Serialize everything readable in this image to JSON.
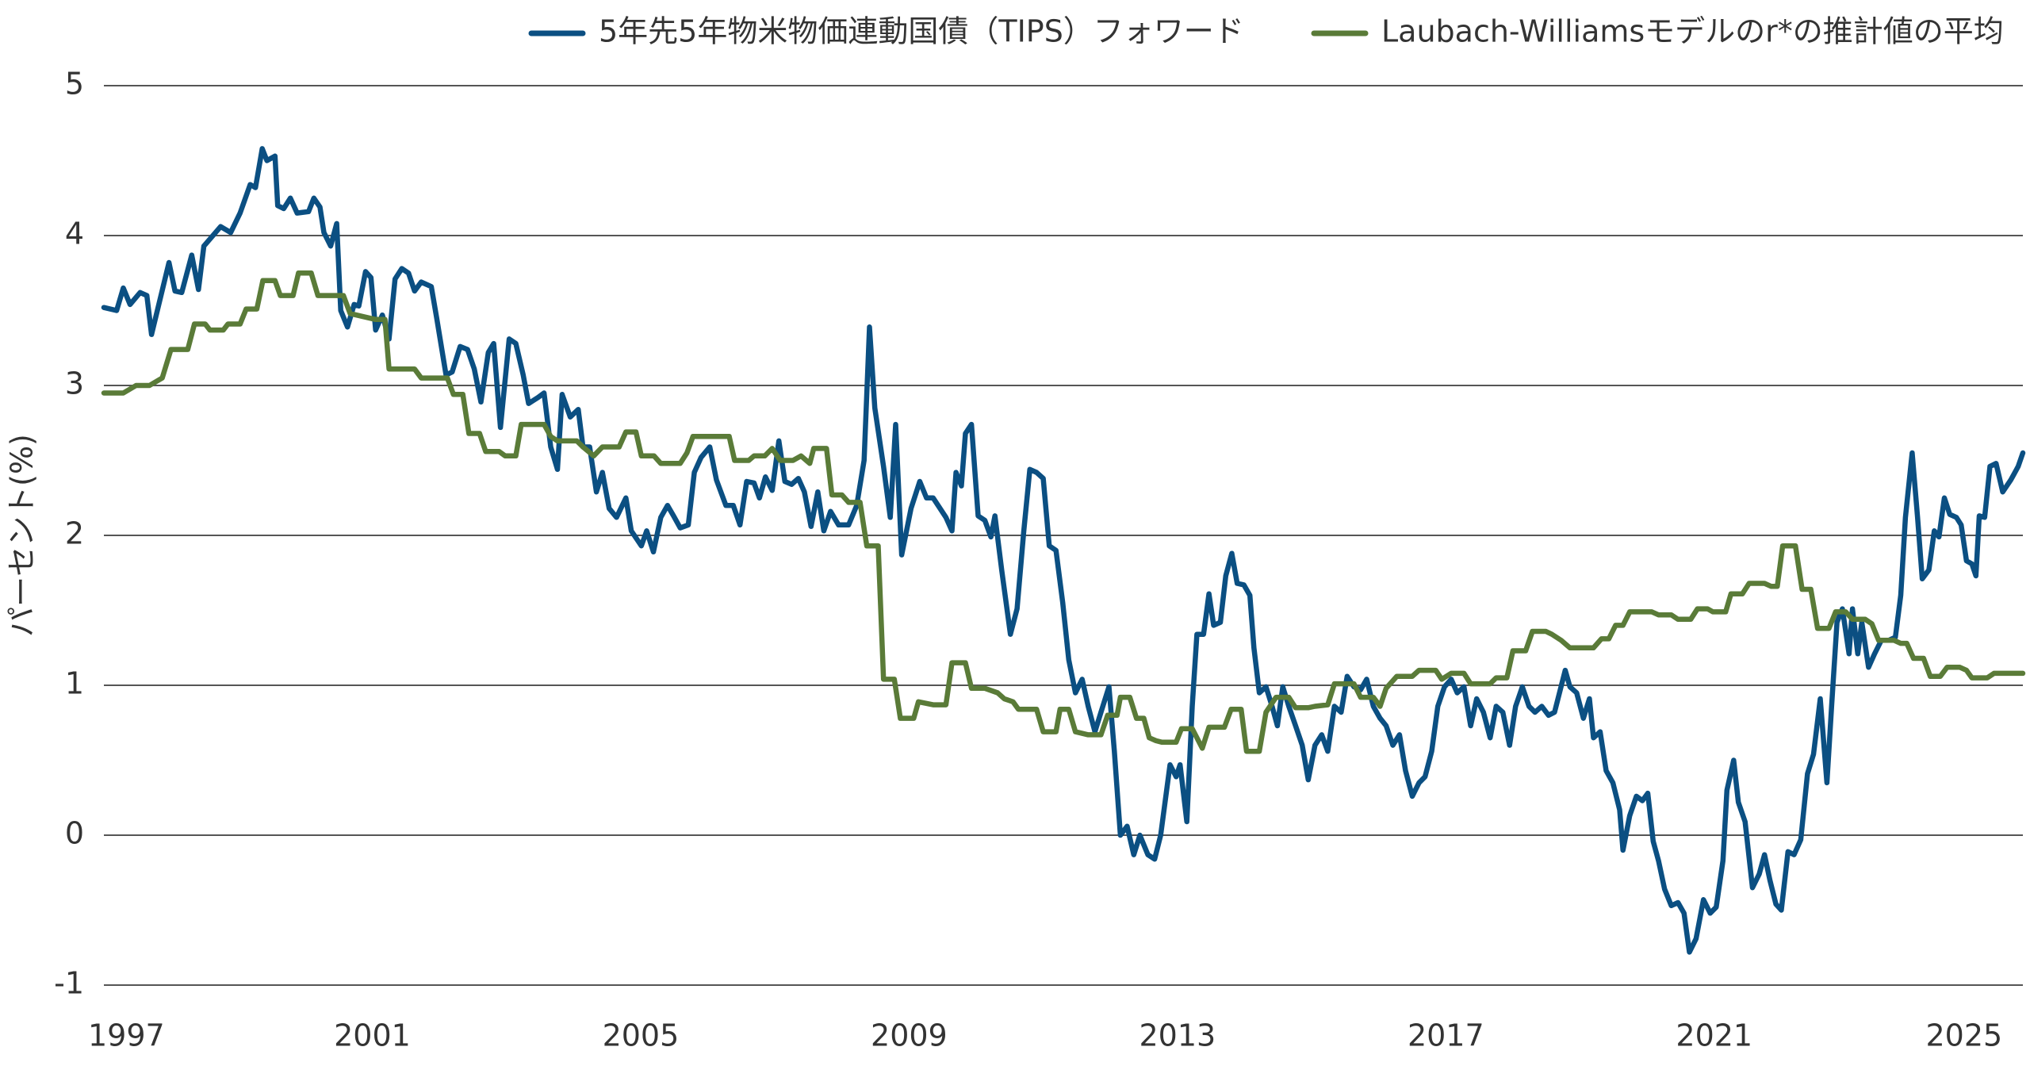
{
  "chart_data": {
    "type": "line",
    "ylabel": "パーセント(%)",
    "xlim": [
      1997,
      2025.6
    ],
    "xticks": [
      1997,
      2001,
      2005,
      2009,
      2013,
      2017,
      2021,
      2025
    ],
    "ylim": [
      -1,
      5
    ],
    "yticks": [
      -1,
      0,
      1,
      2,
      3,
      4,
      5
    ],
    "grid": true,
    "legend": "top",
    "series": [
      {
        "name": "5年先5年物米物価連動国債（TIPS）フォワード",
        "color": "#0b4f82",
        "x": [
          1997.0,
          1997.19,
          1997.29,
          1997.39,
          1997.54,
          1997.64,
          1997.71,
          1997.97,
          1998.06,
          1998.16,
          1998.31,
          1998.41,
          1998.49,
          1998.74,
          1998.89,
          1999.03,
          1999.18,
          1999.26,
          1999.36,
          1999.43,
          1999.55,
          1999.59,
          1999.68,
          1999.78,
          1999.88,
          2000.05,
          2000.13,
          2000.22,
          2000.28,
          2000.38,
          2000.47,
          2000.53,
          2000.63,
          2000.73,
          2000.8,
          2000.9,
          2000.98,
          2001.05,
          2001.15,
          2001.25,
          2001.34,
          2001.44,
          2001.54,
          2001.63,
          2001.73,
          2001.88,
          2001.96,
          2002.1,
          2002.19,
          2002.31,
          2002.42,
          2002.52,
          2002.62,
          2002.73,
          2002.81,
          2002.91,
          2003.04,
          2003.14,
          2003.25,
          2003.33,
          2003.47,
          2003.56,
          2003.66,
          2003.76,
          2003.83,
          2003.95,
          2004.07,
          2004.14,
          2004.24,
          2004.34,
          2004.43,
          2004.53,
          2004.64,
          2004.78,
          2004.86,
          2005.01,
          2005.09,
          2005.19,
          2005.3,
          2005.4,
          2005.49,
          2005.59,
          2005.71,
          2005.8,
          2005.9,
          2006.03,
          2006.13,
          2006.27,
          2006.38,
          2006.48,
          2006.58,
          2006.69,
          2006.77,
          2006.86,
          2006.96,
          2007.06,
          2007.15,
          2007.25,
          2007.35,
          2007.44,
          2007.54,
          2007.64,
          2007.73,
          2007.83,
          2007.95,
          2008.1,
          2008.22,
          2008.33,
          2008.41,
          2008.49,
          2008.62,
          2008.72,
          2008.8,
          2008.89,
          2009.03,
          2009.16,
          2009.26,
          2009.36,
          2009.55,
          2009.64,
          2009.7,
          2009.78,
          2009.84,
          2009.93,
          2010.03,
          2010.13,
          2010.22,
          2010.28,
          2010.38,
          2010.51,
          2010.61,
          2010.71,
          2010.8,
          2010.9,
          2011.0,
          2011.09,
          2011.19,
          2011.29,
          2011.38,
          2011.48,
          2011.58,
          2011.67,
          2011.77,
          2011.86,
          2011.98,
          2012.06,
          2012.15,
          2012.25,
          2012.35,
          2012.44,
          2012.56,
          2012.66,
          2012.75,
          2012.89,
          2012.98,
          2013.04,
          2013.14,
          2013.22,
          2013.29,
          2013.39,
          2013.47,
          2013.54,
          2013.64,
          2013.72,
          2013.81,
          2013.89,
          2013.99,
          2014.08,
          2014.14,
          2014.22,
          2014.32,
          2014.41,
          2014.49,
          2014.57,
          2014.66,
          2014.76,
          2014.86,
          2014.95,
          2015.05,
          2015.15,
          2015.24,
          2015.34,
          2015.44,
          2015.53,
          2015.63,
          2015.73,
          2015.82,
          2015.92,
          2016.02,
          2016.11,
          2016.21,
          2016.31,
          2016.4,
          2016.5,
          2016.6,
          2016.69,
          2016.79,
          2016.88,
          2016.98,
          2017.08,
          2017.17,
          2017.27,
          2017.37,
          2017.46,
          2017.56,
          2017.66,
          2017.75,
          2017.85,
          2017.95,
          2018.04,
          2018.14,
          2018.24,
          2018.33,
          2018.43,
          2018.53,
          2018.62,
          2018.78,
          2018.85,
          2018.95,
          2019.05,
          2019.14,
          2019.2,
          2019.3,
          2019.39,
          2019.49,
          2019.59,
          2019.64,
          2019.74,
          2019.84,
          2019.93,
          2020.01,
          2020.09,
          2020.17,
          2020.26,
          2020.36,
          2020.46,
          2020.55,
          2020.63,
          2020.73,
          2020.84,
          2020.94,
          2021.03,
          2021.13,
          2021.19,
          2021.29,
          2021.36,
          2021.46,
          2021.57,
          2021.67,
          2021.75,
          2021.83,
          2021.92,
          2022.0,
          2022.1,
          2022.19,
          2022.29,
          2022.39,
          2022.48,
          2022.58,
          2022.68,
          2022.75,
          2022.83,
          2022.91,
          2023.01,
          2023.06,
          2023.14,
          2023.2,
          2023.3,
          2023.39,
          2023.49,
          2023.6,
          2023.7,
          2023.78,
          2023.85,
          2023.95,
          2024.03,
          2024.1,
          2024.2,
          2024.28,
          2024.35,
          2024.43,
          2024.51,
          2024.61,
          2024.68,
          2024.76,
          2024.84,
          2024.9,
          2024.95,
          2025.03,
          2025.11,
          2025.2,
          2025.3,
          2025.42,
          2025.53,
          2025.6
        ],
        "values": [
          3.52,
          3.5,
          3.65,
          3.54,
          3.62,
          3.6,
          3.34,
          3.82,
          3.63,
          3.62,
          3.87,
          3.64,
          3.93,
          4.06,
          4.02,
          4.15,
          4.34,
          4.32,
          4.58,
          4.5,
          4.53,
          4.2,
          4.18,
          4.25,
          4.15,
          4.16,
          4.25,
          4.19,
          4.02,
          3.93,
          4.08,
          3.5,
          3.39,
          3.54,
          3.53,
          3.76,
          3.72,
          3.37,
          3.47,
          3.31,
          3.71,
          3.78,
          3.75,
          3.63,
          3.69,
          3.66,
          3.45,
          3.07,
          3.09,
          3.26,
          3.24,
          3.11,
          2.89,
          3.22,
          3.28,
          2.72,
          3.31,
          3.28,
          3.07,
          2.88,
          2.92,
          2.95,
          2.59,
          2.44,
          2.94,
          2.79,
          2.84,
          2.59,
          2.59,
          2.29,
          2.42,
          2.18,
          2.12,
          2.25,
          2.03,
          1.93,
          2.03,
          1.89,
          2.12,
          2.2,
          2.13,
          2.05,
          2.07,
          2.42,
          2.52,
          2.59,
          2.37,
          2.2,
          2.2,
          2.07,
          2.36,
          2.35,
          2.25,
          2.39,
          2.3,
          2.63,
          2.36,
          2.34,
          2.38,
          2.29,
          2.06,
          2.29,
          2.03,
          2.16,
          2.07,
          2.07,
          2.2,
          2.5,
          3.39,
          2.85,
          2.46,
          2.12,
          2.74,
          1.87,
          2.18,
          2.36,
          2.25,
          2.25,
          2.12,
          2.03,
          2.42,
          2.33,
          2.68,
          2.74,
          2.13,
          2.1,
          1.99,
          2.13,
          1.77,
          1.34,
          1.51,
          2.03,
          2.44,
          2.42,
          2.38,
          1.93,
          1.9,
          1.55,
          1.17,
          0.95,
          1.04,
          0.86,
          0.69,
          0.82,
          0.99,
          0.56,
          0.0,
          0.06,
          -0.13,
          0.0,
          -0.13,
          -0.16,
          0.0,
          0.47,
          0.39,
          0.47,
          0.09,
          0.86,
          1.34,
          1.34,
          1.61,
          1.4,
          1.42,
          1.73,
          1.88,
          1.68,
          1.67,
          1.6,
          1.25,
          0.95,
          0.99,
          0.86,
          0.73,
          0.99,
          0.86,
          0.73,
          0.6,
          0.37,
          0.6,
          0.67,
          0.56,
          0.86,
          0.82,
          1.06,
          0.99,
          0.97,
          1.04,
          0.86,
          0.78,
          0.73,
          0.6,
          0.67,
          0.43,
          0.26,
          0.35,
          0.39,
          0.56,
          0.86,
          0.99,
          1.04,
          0.95,
          0.99,
          0.73,
          0.91,
          0.82,
          0.65,
          0.86,
          0.82,
          0.6,
          0.86,
          0.99,
          0.86,
          0.82,
          0.86,
          0.8,
          0.82,
          1.1,
          0.99,
          0.95,
          0.78,
          0.91,
          0.65,
          0.69,
          0.43,
          0.35,
          0.17,
          -0.1,
          0.13,
          0.26,
          0.23,
          0.28,
          -0.04,
          -0.17,
          -0.36,
          -0.47,
          -0.45,
          -0.52,
          -0.78,
          -0.69,
          -0.43,
          -0.52,
          -0.48,
          -0.17,
          0.3,
          0.5,
          0.22,
          0.09,
          -0.35,
          -0.26,
          -0.13,
          -0.3,
          -0.46,
          -0.5,
          -0.11,
          -0.13,
          -0.03,
          0.41,
          0.54,
          0.91,
          0.35,
          0.86,
          1.42,
          1.51,
          1.21,
          1.51,
          1.21,
          1.42,
          1.12,
          1.21,
          1.3,
          1.3,
          1.32,
          1.6,
          2.12,
          2.55,
          2.12,
          1.71,
          1.77,
          2.03,
          1.99,
          2.25,
          2.14,
          2.12,
          2.07,
          1.83,
          1.81,
          1.73,
          2.13,
          2.12,
          2.46,
          2.48,
          2.29,
          2.37,
          2.46,
          2.55
        ]
      },
      {
        "name": "Laubach-Williamsモデルのr*の推計値の平均",
        "color": "#5a7b38",
        "x": [
          1997.0,
          1997.29,
          1997.48,
          1997.68,
          1997.87,
          1998.0,
          1998.25,
          1998.35,
          1998.51,
          1998.58,
          1998.78,
          1998.85,
          1999.03,
          1999.12,
          1999.28,
          1999.37,
          1999.55,
          1999.63,
          1999.82,
          1999.9,
          2000.09,
          2000.19,
          2000.57,
          2000.67,
          2001.05,
          2001.19,
          2001.25,
          2001.63,
          2001.73,
          2002.12,
          2002.21,
          2002.35,
          2002.44,
          2002.6,
          2002.69,
          2002.89,
          2002.98,
          2003.14,
          2003.22,
          2003.56,
          2003.66,
          2003.76,
          2004.05,
          2004.14,
          2004.3,
          2004.43,
          2004.68,
          2004.78,
          2004.93,
          2005.01,
          2005.2,
          2005.3,
          2005.59,
          2005.69,
          2005.78,
          2006.32,
          2006.4,
          2006.61,
          2006.69,
          2006.85,
          2006.96,
          2007.08,
          2007.27,
          2007.39,
          2007.52,
          2007.58,
          2007.77,
          2007.85,
          2008.0,
          2008.1,
          2008.27,
          2008.37,
          2008.54,
          2008.62,
          2008.78,
          2008.87,
          2009.07,
          2009.14,
          2009.36,
          2009.55,
          2009.64,
          2009.84,
          2009.93,
          2010.13,
          2010.32,
          2010.42,
          2010.55,
          2010.63,
          2010.9,
          2011.0,
          2011.19,
          2011.25,
          2011.38,
          2011.48,
          2011.67,
          2011.86,
          2011.96,
          2012.1,
          2012.15,
          2012.29,
          2012.39,
          2012.5,
          2012.58,
          2012.68,
          2012.77,
          2012.98,
          2013.06,
          2013.22,
          2013.37,
          2013.47,
          2013.7,
          2013.8,
          2013.95,
          2014.03,
          2014.22,
          2014.32,
          2014.47,
          2014.66,
          2014.76,
          2014.95,
          2015.05,
          2015.24,
          2015.34,
          2015.63,
          2015.73,
          2015.92,
          2016.02,
          2016.11,
          2016.27,
          2016.5,
          2016.6,
          2016.85,
          2016.94,
          2017.08,
          2017.27,
          2017.37,
          2017.66,
          2017.75,
          2017.91,
          2018.0,
          2018.19,
          2018.29,
          2018.49,
          2018.58,
          2018.72,
          2018.85,
          2019.2,
          2019.32,
          2019.43,
          2019.53,
          2019.64,
          2019.74,
          2020.07,
          2020.17,
          2020.36,
          2020.46,
          2020.65,
          2020.75,
          2020.9,
          2020.98,
          2021.17,
          2021.25,
          2021.42,
          2021.52,
          2021.75,
          2021.85,
          2021.94,
          2022.02,
          2022.21,
          2022.31,
          2022.44,
          2022.54,
          2022.71,
          2022.81,
          2022.96,
          2023.06,
          2023.25,
          2023.35,
          2023.45,
          2023.68,
          2023.78,
          2023.87,
          2023.97,
          2024.12,
          2024.22,
          2024.37,
          2024.47,
          2024.66,
          2024.76,
          2024.84,
          2025.07,
          2025.17,
          2025.6
        ],
        "values": [
          2.95,
          2.95,
          3.0,
          3.0,
          3.05,
          3.24,
          3.24,
          3.41,
          3.41,
          3.37,
          3.37,
          3.41,
          3.41,
          3.51,
          3.51,
          3.7,
          3.7,
          3.6,
          3.6,
          3.75,
          3.75,
          3.6,
          3.6,
          3.48,
          3.44,
          3.44,
          3.11,
          3.11,
          3.05,
          3.05,
          2.94,
          2.94,
          2.68,
          2.68,
          2.56,
          2.56,
          2.53,
          2.53,
          2.74,
          2.74,
          2.66,
          2.63,
          2.63,
          2.59,
          2.53,
          2.59,
          2.59,
          2.69,
          2.69,
          2.53,
          2.53,
          2.48,
          2.48,
          2.55,
          2.66,
          2.66,
          2.5,
          2.5,
          2.53,
          2.53,
          2.58,
          2.5,
          2.5,
          2.53,
          2.48,
          2.58,
          2.58,
          2.27,
          2.27,
          2.22,
          2.22,
          1.93,
          1.93,
          1.04,
          1.04,
          0.78,
          0.78,
          0.89,
          0.87,
          0.87,
          1.15,
          1.15,
          0.98,
          0.98,
          0.95,
          0.91,
          0.89,
          0.84,
          0.84,
          0.69,
          0.69,
          0.84,
          0.84,
          0.69,
          0.67,
          0.67,
          0.8,
          0.8,
          0.92,
          0.92,
          0.78,
          0.78,
          0.65,
          0.63,
          0.62,
          0.62,
          0.71,
          0.71,
          0.58,
          0.72,
          0.72,
          0.84,
          0.84,
          0.56,
          0.56,
          0.82,
          0.92,
          0.92,
          0.85,
          0.85,
          0.86,
          0.87,
          1.01,
          1.01,
          0.92,
          0.92,
          0.86,
          0.98,
          1.06,
          1.06,
          1.1,
          1.1,
          1.04,
          1.08,
          1.08,
          1.01,
          1.01,
          1.05,
          1.05,
          1.23,
          1.23,
          1.36,
          1.36,
          1.34,
          1.3,
          1.25,
          1.25,
          1.31,
          1.31,
          1.4,
          1.4,
          1.49,
          1.49,
          1.47,
          1.47,
          1.44,
          1.44,
          1.51,
          1.51,
          1.49,
          1.49,
          1.61,
          1.61,
          1.68,
          1.68,
          1.66,
          1.66,
          1.93,
          1.93,
          1.64,
          1.64,
          1.38,
          1.38,
          1.49,
          1.49,
          1.44,
          1.44,
          1.41,
          1.3,
          1.3,
          1.28,
          1.28,
          1.18,
          1.18,
          1.06,
          1.06,
          1.12,
          1.12,
          1.1,
          1.05,
          1.05,
          1.08,
          1.08
        ]
      }
    ]
  }
}
